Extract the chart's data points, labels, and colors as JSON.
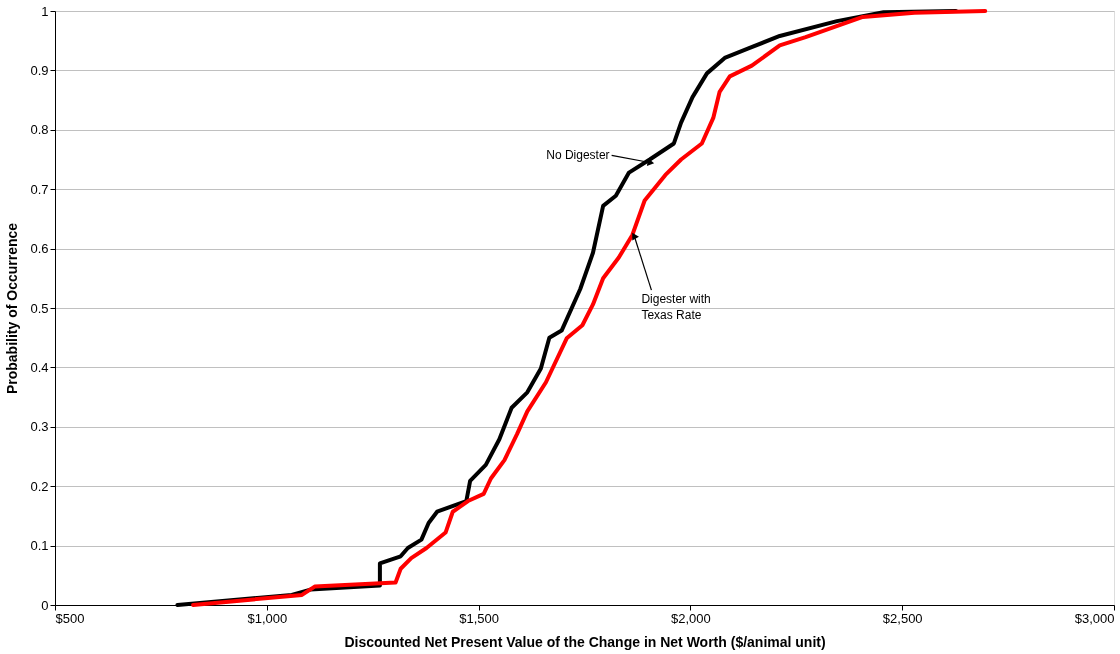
{
  "chart_data": {
    "type": "line",
    "xlabel": "Discounted Net Present Value of the Change in Net Worth ($/animal unit)",
    "ylabel": "Probability of Occurrence",
    "xlim": [
      500,
      3000
    ],
    "xticks": [
      {
        "value": 500,
        "label": "$500"
      },
      {
        "value": 1000,
        "label": "$1,000"
      },
      {
        "value": 1500,
        "label": "$1,500"
      },
      {
        "value": 2000,
        "label": "$2,000"
      },
      {
        "value": 2500,
        "label": "$2,500"
      },
      {
        "value": 3000,
        "label": "$3,000"
      }
    ],
    "ylim": [
      0,
      1
    ],
    "yticks": [
      0,
      0.1,
      0.2,
      0.3,
      0.4,
      0.5,
      0.6,
      0.7,
      0.8,
      0.9,
      1
    ],
    "grid": "y",
    "legend": false,
    "marker": "none",
    "line_style": "solid",
    "series": [
      {
        "color": "#000000",
        "x": [
          789,
          1059,
          1103,
          1267,
          1267,
          1316,
          1333,
          1365,
          1382,
          1402,
          1471,
          1480,
          1517,
          1549,
          1578,
          1615,
          1647,
          1667,
          1696,
          1740,
          1770,
          1794,
          1824,
          1855,
          1904,
          1961,
          1978,
          2005,
          2039,
          2081,
          2137,
          2211,
          2346,
          2456,
          2627
        ],
        "values": [
          0,
          0.017,
          0.026,
          0.033,
          0.07,
          0.082,
          0.096,
          0.11,
          0.138,
          0.157,
          0.175,
          0.209,
          0.236,
          0.279,
          0.332,
          0.358,
          0.398,
          0.45,
          0.462,
          0.532,
          0.593,
          0.672,
          0.689,
          0.728,
          0.75,
          0.777,
          0.812,
          0.855,
          0.895,
          0.921,
          0.937,
          0.958,
          0.983,
          0.998,
          1.0
        ]
      },
      {
        "color": "#ff0000",
        "x": [
          826,
          1083,
          1113,
          1304,
          1316,
          1341,
          1377,
          1422,
          1439,
          1475,
          1512,
          1529,
          1561,
          1591,
          1615,
          1659,
          1708,
          1745,
          1770,
          1794,
          1831,
          1863,
          1892,
          1941,
          1978,
          2027,
          2054,
          2069,
          2093,
          2145,
          2211,
          2272,
          2407,
          2529,
          2696
        ],
        "values": [
          0,
          0.017,
          0.031,
          0.038,
          0.061,
          0.079,
          0.096,
          0.122,
          0.157,
          0.175,
          0.187,
          0.213,
          0.244,
          0.288,
          0.326,
          0.375,
          0.449,
          0.471,
          0.506,
          0.55,
          0.585,
          0.623,
          0.681,
          0.724,
          0.75,
          0.777,
          0.82,
          0.864,
          0.89,
          0.908,
          0.942,
          0.956,
          0.99,
          0.997,
          1.0
        ]
      }
    ],
    "annotations": [
      {
        "text": "No Digester",
        "x": 1904,
        "y": 0.745
      },
      {
        "text": "Digester with\nTexas Rate",
        "x": 1868,
        "y": 0.62
      }
    ]
  }
}
